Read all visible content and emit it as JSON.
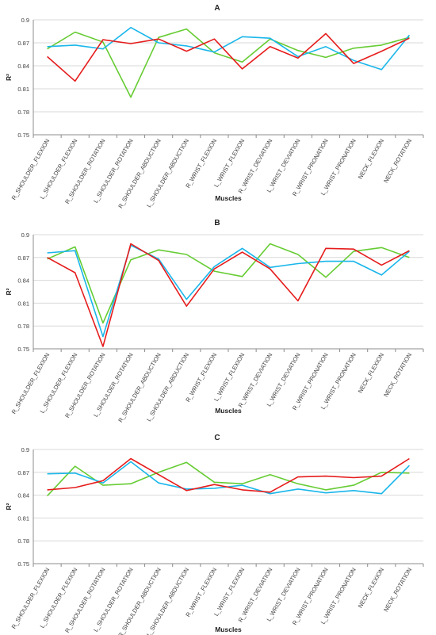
{
  "colors": {
    "green": "#66cc33",
    "blue": "#19b6ea",
    "red": "#e61c1c"
  },
  "chart_data": [
    {
      "type": "line",
      "title": "A",
      "xlabel": "Muscles",
      "ylabel": "R²",
      "ylim": [
        0.75,
        0.9
      ],
      "yticks": [
        "0.75",
        "0.78",
        "0.81",
        "0.84",
        "0.87",
        "0.9"
      ],
      "categories": [
        "R_SHOULDER_FLEXION",
        "L_SHOULDER_FLEXION",
        "R_SHOULDER_ROTATION",
        "L_SHOULDER_ROTATION",
        "R_SHOULDER_ABDUCTION",
        "L_SHOULDER_ABDUCTION",
        "R_WRIST_FLEXION",
        "L_WRIST_FLEXION",
        "R_WRIST_DEVIATION",
        "L_WRIST_DEVIATION",
        "R_WRIST_PRONATION",
        "L_WRIST_PRONATION",
        "NECK_FLEXION",
        "NECK_ROTATION"
      ],
      "series": [
        {
          "color": "green",
          "values": [
            0.862,
            0.884,
            0.871,
            0.799,
            0.877,
            0.888,
            0.857,
            0.845,
            0.875,
            0.86,
            0.851,
            0.863,
            0.867,
            0.877
          ]
        },
        {
          "color": "blue",
          "values": [
            0.865,
            0.867,
            0.862,
            0.89,
            0.87,
            0.866,
            0.858,
            0.878,
            0.876,
            0.852,
            0.865,
            0.847,
            0.835,
            0.88
          ]
        },
        {
          "color": "red",
          "values": [
            0.852,
            0.82,
            0.874,
            0.869,
            0.875,
            0.859,
            0.875,
            0.836,
            0.865,
            0.85,
            0.882,
            0.843,
            0.859,
            0.876
          ]
        }
      ]
    },
    {
      "type": "line",
      "title": "B",
      "xlabel": "Muscles",
      "ylabel": "R²",
      "ylim": [
        0.75,
        0.9
      ],
      "yticks": [
        "0.75",
        "0.78",
        "0.81",
        "0.84",
        "0.87",
        "0.9"
      ],
      "categories": [
        "R_SHOULDER_FLEXION",
        "L_SHOULDER_FLEXION",
        "R_SHOULDER_ROTATION",
        "L_SHOULDER_ROTATION",
        "R_SHOULDER_ABDUCTION",
        "L_SHOULDER_ABDUCTION",
        "R_WRIST_FLEXION",
        "L_WRIST_FLEXION",
        "R_WRIST_DEVIATION",
        "L_WRIST_DEVIATION",
        "R_WRIST_PRONATION",
        "L_WRIST_PRONATION",
        "NECK_FLEXION",
        "NECK_ROTATION"
      ],
      "series": [
        {
          "color": "green",
          "values": [
            0.868,
            0.884,
            0.784,
            0.867,
            0.88,
            0.874,
            0.852,
            0.845,
            0.888,
            0.874,
            0.844,
            0.878,
            0.883,
            0.87
          ]
        },
        {
          "color": "blue",
          "values": [
            0.876,
            0.879,
            0.766,
            0.886,
            0.868,
            0.815,
            0.858,
            0.882,
            0.857,
            0.862,
            0.865,
            0.865,
            0.847,
            0.878
          ]
        },
        {
          "color": "red",
          "values": [
            0.87,
            0.85,
            0.753,
            0.888,
            0.866,
            0.806,
            0.855,
            0.877,
            0.855,
            0.813,
            0.882,
            0.881,
            0.86,
            0.879
          ]
        }
      ]
    },
    {
      "type": "line",
      "title": "C",
      "xlabel": "Muscles",
      "ylabel": "R²",
      "ylim": [
        0.75,
        0.9
      ],
      "yticks": [
        "0.75",
        "0.78",
        "0.81",
        "0.84",
        "0.87",
        "0.9"
      ],
      "categories": [
        "R_SHOULDER_FLEXION",
        "L_SHOULDER_FLEXION",
        "R_SHOULDER_ROTATION",
        "L_SHOULDER_ROTATION",
        "R_SHOULDER_ABDUCTION",
        "L_SHOULDER_ABDUCTION",
        "R_WRIST_FLEXION",
        "L_WRIST_FLEXION",
        "R_WRIST_DEVIATION",
        "L_WRIST_DEVIATION",
        "R_WRIST_PRONATION",
        "L_WRIST_PRONATION",
        "NECK_FLEXION",
        "NECK_ROTATION"
      ],
      "series": [
        {
          "color": "green",
          "values": [
            0.839,
            0.878,
            0.853,
            0.855,
            0.87,
            0.883,
            0.857,
            0.855,
            0.867,
            0.855,
            0.847,
            0.853,
            0.87,
            0.869
          ]
        },
        {
          "color": "blue",
          "values": [
            0.868,
            0.869,
            0.856,
            0.884,
            0.856,
            0.848,
            0.849,
            0.853,
            0.842,
            0.848,
            0.843,
            0.846,
            0.842,
            0.879
          ]
        },
        {
          "color": "red",
          "values": [
            0.847,
            0.85,
            0.859,
            0.888,
            0.867,
            0.846,
            0.854,
            0.847,
            0.844,
            0.864,
            0.865,
            0.863,
            0.865,
            0.888
          ]
        }
      ]
    }
  ]
}
